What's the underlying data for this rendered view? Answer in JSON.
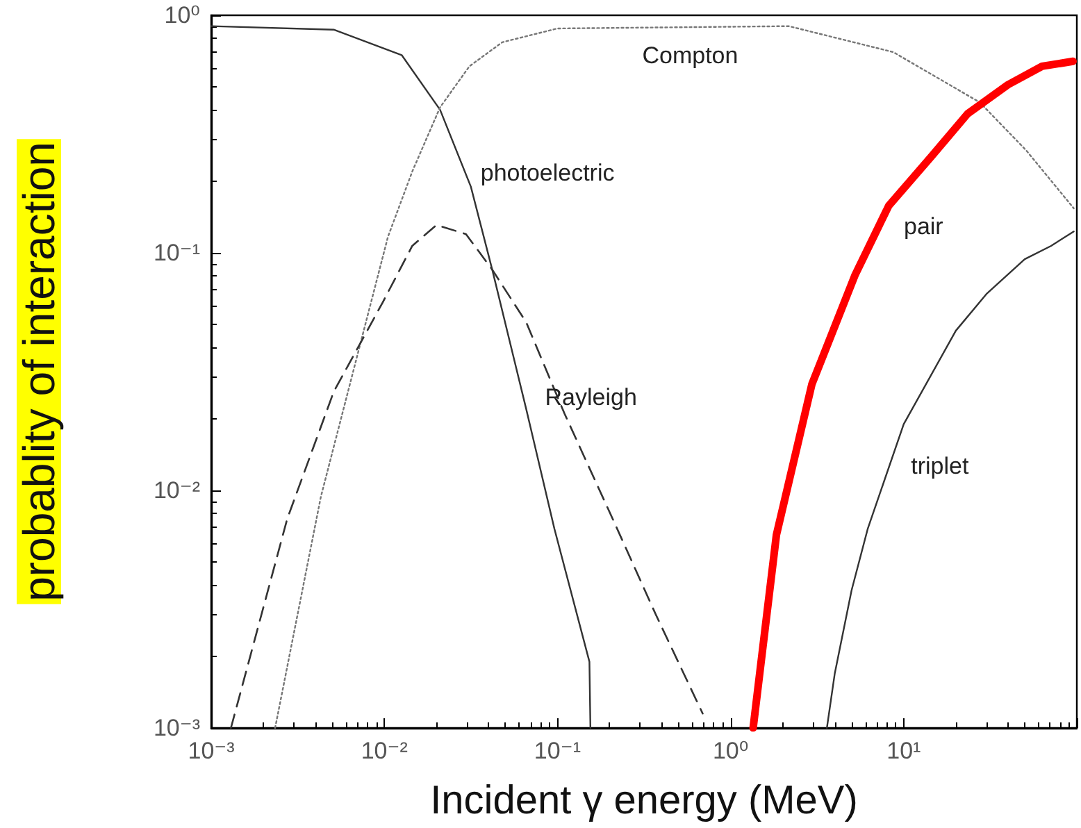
{
  "chart_data": {
    "type": "line",
    "xlabel": "Incident γ energy (MeV)",
    "ylabel": "probablity of interaction",
    "log": "xy",
    "grid": false,
    "legend": false,
    "marker": "none",
    "xlim": [
      0.001,
      100
    ],
    "xticks": [
      {
        "value": 0.001,
        "label": "10⁻³"
      },
      {
        "value": 0.01,
        "label": "10⁻²"
      },
      {
        "value": 0.1,
        "label": "10⁻¹"
      },
      {
        "value": 1,
        "label": "10⁰"
      },
      {
        "value": 10,
        "label": "10¹"
      },
      {
        "value": 100,
        "label": null
      }
    ],
    "ylim": [
      0.001,
      1
    ],
    "yticks": [
      {
        "value": 0.001,
        "label": "10⁻³"
      },
      {
        "value": 0.01,
        "label": "10⁻²"
      },
      {
        "value": 0.1,
        "label": "10⁻¹"
      },
      {
        "value": 1,
        "label": "10⁰"
      }
    ],
    "series": [
      {
        "name": "photoelectric",
        "color": "#333333",
        "line_style": "solid",
        "x": [
          0.001,
          0.0051,
          0.0126,
          0.021,
          0.0316,
          0.042,
          0.066,
          0.096,
          0.153,
          0.155
        ],
        "values": [
          0.9,
          0.87,
          0.68,
          0.4,
          0.19,
          0.085,
          0.022,
          0.0069,
          0.0019,
          0.001
        ]
      },
      {
        "name": "Compton",
        "color": "#777777",
        "line_style": "dotted",
        "x": [
          0.00234,
          0.0043,
          0.0076,
          0.0105,
          0.0145,
          0.021,
          0.031,
          0.048,
          0.1,
          2.17,
          8.7,
          27.5,
          51,
          96
        ],
        "values": [
          0.001,
          0.0094,
          0.047,
          0.117,
          0.22,
          0.41,
          0.61,
          0.77,
          0.88,
          0.9,
          0.7,
          0.43,
          0.27,
          0.154
        ]
      },
      {
        "name": "Rayleigh",
        "color": "#333333",
        "line_style": "dashed",
        "x": [
          0.0013,
          0.00275,
          0.0051,
          0.0098,
          0.0145,
          0.02,
          0.0296,
          0.042,
          0.066,
          0.11,
          0.21,
          0.37,
          0.69
        ],
        "values": [
          0.001,
          0.0076,
          0.026,
          0.062,
          0.107,
          0.131,
          0.12,
          0.085,
          0.051,
          0.021,
          0.0075,
          0.003,
          0.00115
        ]
      },
      {
        "name": "pair",
        "color": "#ff0000",
        "line_style": "solid",
        "x": [
          1.35,
          1.84,
          2.95,
          5.25,
          8.2,
          14.5,
          23.4,
          40,
          63,
          95
        ],
        "values": [
          0.001,
          0.0065,
          0.028,
          0.081,
          0.158,
          0.255,
          0.385,
          0.51,
          0.61,
          0.64
        ]
      },
      {
        "name": "triplet",
        "color": "#333333",
        "line_style": "solid",
        "x": [
          3.6,
          4.0,
          5.0,
          6.2,
          10,
          20,
          30,
          50,
          71,
          96
        ],
        "values": [
          0.001,
          0.0017,
          0.0038,
          0.0069,
          0.019,
          0.047,
          0.067,
          0.094,
          0.107,
          0.123
        ]
      }
    ]
  }
}
